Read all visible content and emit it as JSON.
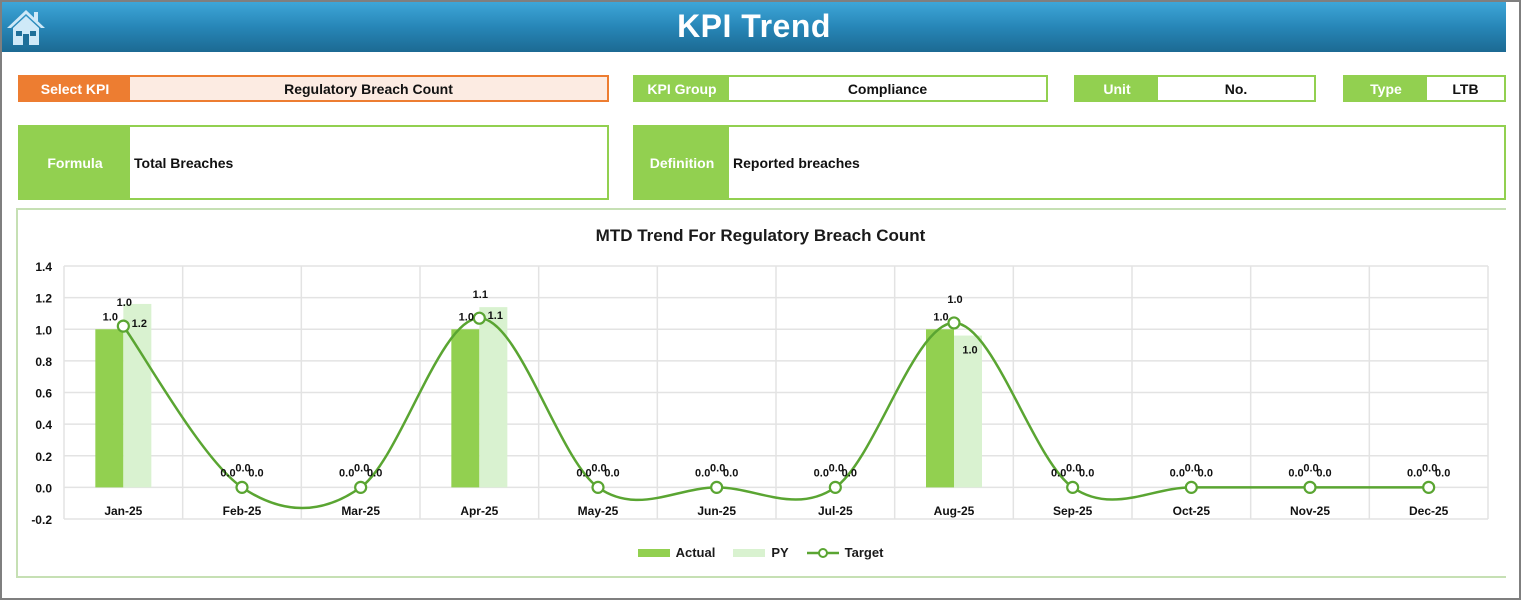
{
  "header": {
    "title": "KPI Trend",
    "home_icon": "home-icon"
  },
  "fields": {
    "select_kpi": {
      "label": "Select KPI",
      "value": "Regulatory Breach Count"
    },
    "kpi_group": {
      "label": "KPI Group",
      "value": "Compliance"
    },
    "unit": {
      "label": "Unit",
      "value": "No."
    },
    "type": {
      "label": "Type",
      "value": "LTB"
    },
    "formula": {
      "label": "Formula",
      "value": "Total Breaches"
    },
    "definition": {
      "label": "Definition",
      "value": "Reported breaches"
    }
  },
  "colors": {
    "accent_green": "#92d050",
    "py_green": "#d9f2d0",
    "target_line": "#5aa532",
    "select_orange": "#ed7d31",
    "header_blue": "#2786b7"
  },
  "legend": {
    "actual": "Actual",
    "py": "PY",
    "target": "Target"
  },
  "chart_data": {
    "type": "bar",
    "title": "MTD Trend For Regulatory Breach Count",
    "xlabel": "",
    "ylabel": "",
    "ylim": [
      -0.2,
      1.4
    ],
    "yticks": [
      "1.4",
      "1.2",
      "1.0",
      "0.8",
      "0.6",
      "0.4",
      "0.2",
      "0.0",
      "-0.2"
    ],
    "grid": true,
    "legend_position": "bottom",
    "categories": [
      "Jan-25",
      "Feb-25",
      "Mar-25",
      "Apr-25",
      "May-25",
      "Jun-25",
      "Jul-25",
      "Aug-25",
      "Sep-25",
      "Oct-25",
      "Nov-25",
      "Dec-25"
    ],
    "series": [
      {
        "name": "Actual",
        "type": "bar",
        "values": [
          1.0,
          0.0,
          0.0,
          1.0,
          0.0,
          0.0,
          0.0,
          1.0,
          0.0,
          0.0,
          0.0,
          0.0
        ],
        "labels": [
          "1.0",
          "0.0",
          "0.0",
          "1.0",
          "0.0",
          "0.0",
          "0.0",
          "1.0",
          "0.0",
          "0.0",
          "0.0",
          "0.0"
        ]
      },
      {
        "name": "PY",
        "type": "bar",
        "values": [
          1.16,
          0.0,
          0.0,
          1.14,
          0.0,
          0.0,
          0.0,
          0.96,
          0.0,
          0.0,
          0.0,
          0.0
        ],
        "labels": [
          "1.2",
          "0.0",
          "0.0",
          "1.1",
          "0.0",
          "0.0",
          "0.0",
          "1.0",
          "0.0",
          "0.0",
          "0.0",
          "0.0"
        ]
      },
      {
        "name": "Target",
        "type": "line-smooth",
        "values": [
          1.02,
          0.0,
          0.0,
          1.07,
          0.0,
          0.0,
          0.0,
          1.04,
          0.0,
          0.0,
          0.0,
          0.0
        ],
        "labels": [
          "1.0",
          "0.0",
          "0.0",
          "1.1",
          "0.0",
          "0.0",
          "0.0",
          "1.0",
          "0.0",
          "0.0",
          "0.0",
          "0.0"
        ]
      }
    ]
  }
}
